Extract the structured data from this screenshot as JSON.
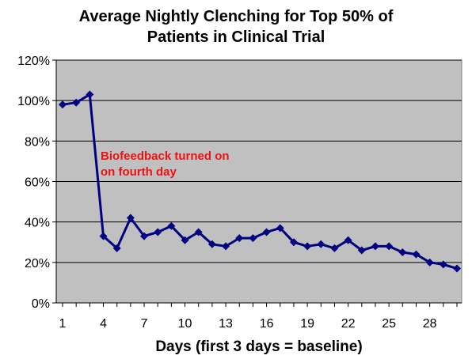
{
  "chart_data": {
    "type": "line",
    "title_line1": "Average Nightly Clenching for Top 50%  of",
    "title_line2": "Patients in Clinical Trial",
    "xlabel": "Days (first 3 days = baseline)",
    "ylabel": "",
    "x_ticks": [
      "1",
      "4",
      "7",
      "10",
      "13",
      "16",
      "19",
      "22",
      "25",
      "28"
    ],
    "y_ticks": [
      "0%",
      "20%",
      "40%",
      "60%",
      "80%",
      "100%",
      "120%"
    ],
    "xlim": [
      1,
      30
    ],
    "ylim": [
      0,
      120
    ],
    "grid": "horizontal",
    "legend": "none",
    "annotation_line1": "Biofeedback turned on",
    "annotation_line2": "on fourth day",
    "colors": {
      "plot_background": "#c0c0c0",
      "line": "#000080",
      "annotation": "#ee1111",
      "grid": "#000000"
    },
    "series": [
      {
        "x": [
          1,
          2,
          3,
          4,
          5,
          6,
          7,
          8,
          9,
          10,
          11,
          12,
          13,
          14,
          15,
          16,
          17,
          18,
          19,
          20,
          21,
          22,
          23,
          24,
          25,
          26,
          27,
          28,
          29,
          30
        ],
        "values": [
          98,
          99,
          103,
          33,
          27,
          42,
          33,
          35,
          38,
          31,
          35,
          29,
          28,
          32,
          32,
          35,
          37,
          30,
          28,
          29,
          27,
          31,
          26,
          28,
          28,
          25,
          24,
          20,
          19,
          17
        ]
      }
    ]
  }
}
